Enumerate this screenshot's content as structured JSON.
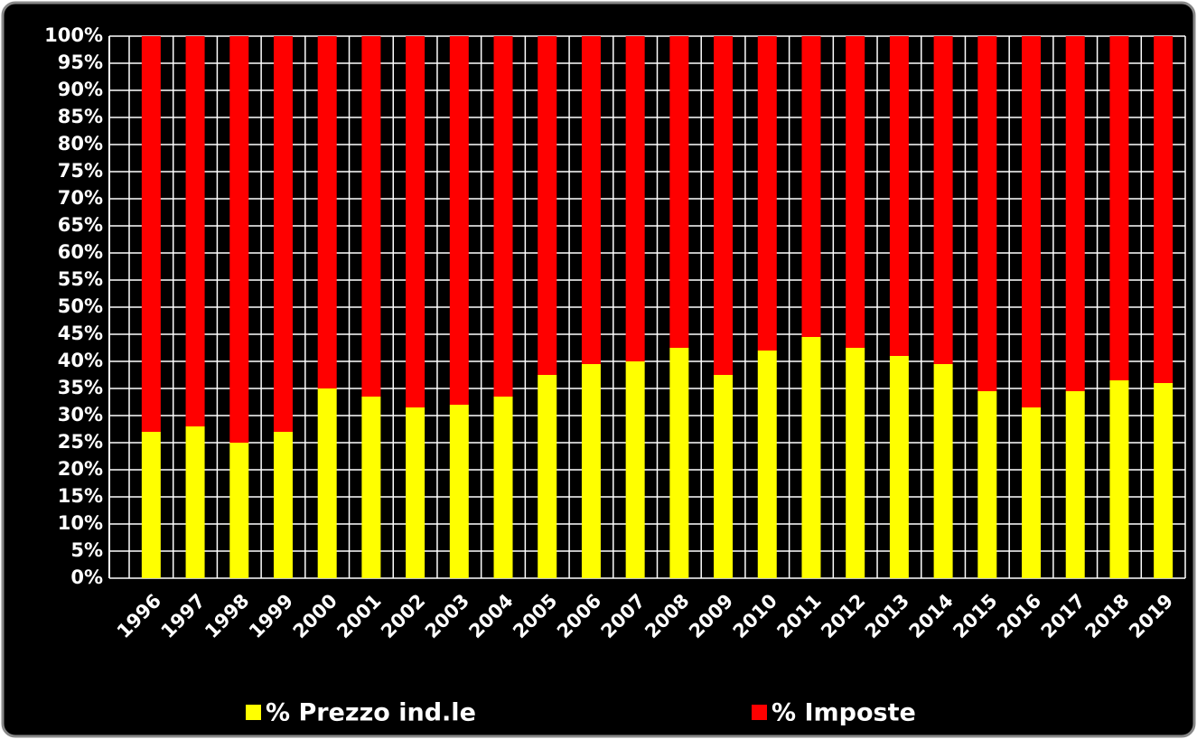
{
  "chart_data": {
    "type": "bar",
    "stacked": true,
    "categories": [
      "1996",
      "1997",
      "1998",
      "1999",
      "2000",
      "2001",
      "2002",
      "2003",
      "2004",
      "2005",
      "2006",
      "2007",
      "2008",
      "2009",
      "2010",
      "2011",
      "2012",
      "2013",
      "2014",
      "2015",
      "2016",
      "2017",
      "2018",
      "2019"
    ],
    "series": [
      {
        "name": "% Prezzo ind.le",
        "color": "#ffff00",
        "values": [
          27,
          28,
          25,
          27,
          35,
          33.5,
          31.5,
          32,
          33.5,
          37.5,
          39.5,
          40,
          42.5,
          37.5,
          42,
          44.5,
          42.5,
          41,
          39.5,
          34.5,
          31.5,
          34.5,
          36.5,
          36
        ]
      },
      {
        "name": "% Imposte",
        "color": "#ff0000",
        "values": [
          73,
          72,
          75,
          73,
          65,
          66.5,
          68.5,
          68,
          66.5,
          62.5,
          60.5,
          60,
          57.5,
          62.5,
          58,
          55.5,
          57.5,
          59,
          60.5,
          65.5,
          68.5,
          65.5,
          63.5,
          64
        ]
      }
    ],
    "ylim": [
      0,
      100
    ],
    "yticks": [
      {
        "value": 0,
        "label": "0%"
      },
      {
        "value": 5,
        "label": "5%"
      },
      {
        "value": 10,
        "label": "10%"
      },
      {
        "value": 15,
        "label": "15%"
      },
      {
        "value": 20,
        "label": "20%"
      },
      {
        "value": 25,
        "label": "25%"
      },
      {
        "value": 30,
        "label": "30%"
      },
      {
        "value": 35,
        "label": "35%"
      },
      {
        "value": 40,
        "label": "40%"
      },
      {
        "value": 45,
        "label": "45%"
      },
      {
        "value": 50,
        "label": "50%"
      },
      {
        "value": 55,
        "label": "55%"
      },
      {
        "value": 60,
        "label": "60%"
      },
      {
        "value": 65,
        "label": "65%"
      },
      {
        "value": 70,
        "label": "70%"
      },
      {
        "value": 75,
        "label": "75%"
      },
      {
        "value": 80,
        "label": "80%"
      },
      {
        "value": 85,
        "label": "85%"
      },
      {
        "value": 90,
        "label": "90%"
      },
      {
        "value": 95,
        "label": "95%"
      },
      {
        "value": 100,
        "label": "100%"
      }
    ],
    "grid": true,
    "legend": "bottom"
  }
}
